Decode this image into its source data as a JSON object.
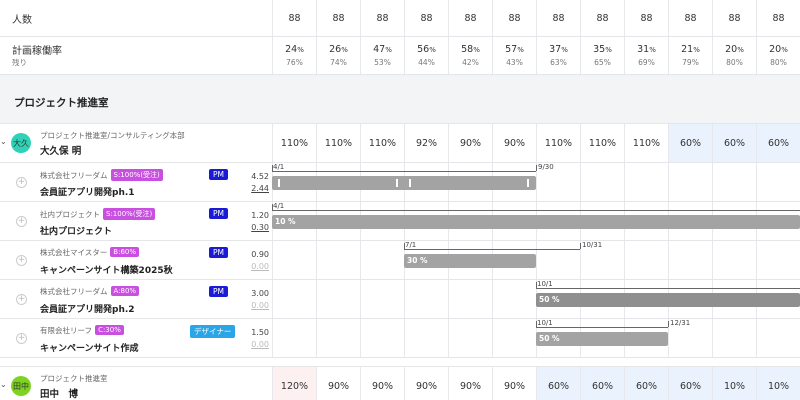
{
  "header": {
    "headcount_label": "人数",
    "headcount_values": [
      "88",
      "88",
      "88",
      "88",
      "88",
      "88",
      "88",
      "88",
      "88",
      "88",
      "88",
      "88"
    ],
    "plan_rate_label": "計画稼働率",
    "remaining_label": "残り",
    "plan_rates": [
      "24",
      "26",
      "47",
      "56",
      "58",
      "57",
      "37",
      "35",
      "31",
      "21",
      "20",
      "20"
    ],
    "remaining": [
      "76%",
      "74%",
      "53%",
      "44%",
      "42%",
      "43%",
      "63%",
      "65%",
      "69%",
      "79%",
      "80%",
      "80%"
    ],
    "percent_symbol": "%"
  },
  "section": {
    "title": "プロジェクト推進室"
  },
  "person1": {
    "avatar": "大久",
    "dept": "プロジェクト推進室/コンサルティング本部",
    "name": "大久保 明",
    "values": [
      "110%",
      "110%",
      "110%",
      "92%",
      "90%",
      "90%",
      "110%",
      "110%",
      "110%",
      "60%",
      "60%",
      "60%"
    ],
    "projects": [
      {
        "client": "株式会社フリーダム",
        "badge": "S:100%(受注)",
        "name": "会員証アプリ開発ph.1",
        "role": "PM",
        "n1": "4.52",
        "n2": "2.44",
        "start_label": "4/1",
        "end_label": "9/30",
        "bar_text": ""
      },
      {
        "client": "社内プロジェクト",
        "badge": "S:100%(受注)",
        "name": "社内プロジェクト",
        "role": "PM",
        "n1": "1.20",
        "n2": "0.30",
        "start_label": "4/1",
        "bar_text": "10 %"
      },
      {
        "client": "株式会社マイスター",
        "badge": "B:60%",
        "name": "キャンペーンサイト構築2025秋",
        "role": "PM",
        "n1": "0.90",
        "n2": "0.00",
        "start_label": "7/1",
        "end_label": "10/31",
        "bar_text": "30 %"
      },
      {
        "client": "株式会社フリーダム",
        "badge": "A:80%",
        "name": "会員証アプリ開発ph.2",
        "role": "PM",
        "n1": "3.00",
        "n2": "0.00",
        "start_label": "10/1",
        "bar_text": "50 %"
      },
      {
        "client": "有限会社リーフ",
        "badge": "C:30%",
        "name": "キャンペーンサイト作成",
        "role": "デザイナー",
        "n1": "1.50",
        "n2": "0.00",
        "start_label": "10/1",
        "end_label": "12/31",
        "bar_text": "50 %"
      }
    ]
  },
  "person2": {
    "avatar": "田中",
    "dept": "プロジェクト推進室",
    "name": "田中　博",
    "values": [
      "120%",
      "90%",
      "90%",
      "90%",
      "90%",
      "90%",
      "60%",
      "60%",
      "60%",
      "60%",
      "10%",
      "10%"
    ]
  },
  "colors": {
    "badge": "#c84fe0",
    "pm": "#1b1bd6",
    "designer": "#2aa6e8",
    "bar": "#a3a3a3",
    "avatar1": "#2ed3b7",
    "avatar2": "#7ed321"
  }
}
